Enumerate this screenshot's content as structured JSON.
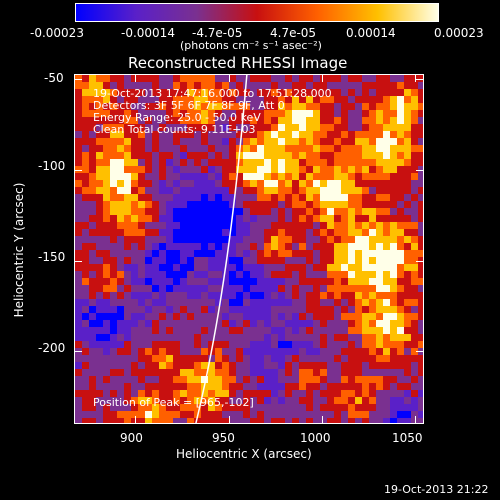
{
  "colorbar": {
    "tick_labels": [
      "-0.00023",
      "-0.00014",
      "-4.7e-05",
      "4.7e-05",
      "0.00014",
      "0.00023"
    ],
    "units_label": "(photons cm⁻² s⁻¹ asec⁻²)",
    "colors": [
      "#0000ff",
      "#5a20c8",
      "#7a3090",
      "#c81010",
      "#ff6000",
      "#ffc000",
      "#ffffe8"
    ]
  },
  "image": {
    "title": "Reconstructed RHESSI Image",
    "time_range": "19-Oct-2013 17:47:16.000 to 17:51:28.000",
    "detectors": "Detectors: 3F 5F 6F 7F 8F 9F, Att 0",
    "energy_range": "Energy Range: 25.0 - 50.0 keV",
    "clean_info": "Clean     Total counts: 9.11E+03",
    "peak_position": "Position of Peak = [965,-102]"
  },
  "axes": {
    "xlabel": "Heliocentric X (arcsec)",
    "ylabel": "Heliocentric Y (arcsec)",
    "xtick_labels": [
      "900",
      "950",
      "1000",
      "1050"
    ],
    "ytick_labels": [
      "-50",
      "-100",
      "-150",
      "-200"
    ],
    "xlim": [
      867,
      1055
    ],
    "ylim": [
      -240,
      -47
    ],
    "xticks": [
      900,
      950,
      1000,
      1050
    ],
    "yticks": [
      -50,
      -100,
      -150,
      -200
    ]
  },
  "footer": {
    "timestamp": "19-Oct-2013 21:22"
  }
}
